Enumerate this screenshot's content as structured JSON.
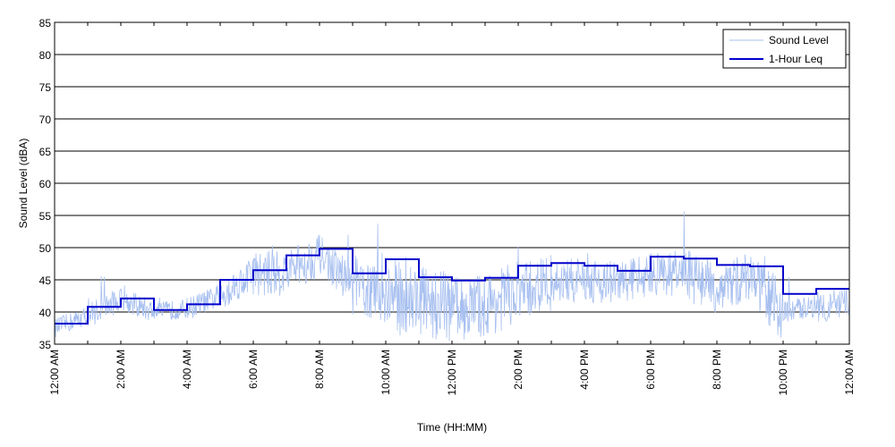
{
  "chart_data": {
    "type": "line",
    "title": "",
    "xlabel": "Time (HH:MM)",
    "ylabel": "Sound Level (dBA)",
    "ylim": [
      35,
      85
    ],
    "yticks": [
      35,
      40,
      45,
      50,
      55,
      60,
      65,
      70,
      75,
      80,
      85
    ],
    "xlim_hours": [
      0,
      24
    ],
    "xtick_hours": [
      0,
      2,
      4,
      6,
      8,
      10,
      12,
      14,
      16,
      18,
      20,
      22,
      24
    ],
    "xtick_labels": [
      "12:00 AM",
      "2:00 AM",
      "4:00 AM",
      "6:00 AM",
      "8:00 AM",
      "10:00 AM",
      "12:00 PM",
      "2:00 PM",
      "4:00 PM",
      "6:00 PM",
      "8:00 PM",
      "10:00 PM",
      "12:00 AM"
    ],
    "grid": "horizontal",
    "legend_position": "top-right",
    "series": [
      {
        "name": "Sound Level",
        "color": "#a8c0f0",
        "style": "thin-noisy",
        "hourly_mean": [
          37.5,
          39.5,
          42.0,
          40.0,
          40.5,
          42.5,
          46.0,
          46.0,
          49.0,
          44.0,
          42.5,
          42.0,
          40.5,
          41.0,
          43.0,
          44.5,
          45.0,
          44.5,
          46.0,
          46.0,
          43.5,
          45.5,
          40.0,
          41.0
        ],
        "hourly_spread": [
          1.5,
          2.0,
          1.8,
          1.5,
          1.8,
          2.5,
          3.5,
          3.5,
          3.0,
          4.5,
          6.0,
          5.5,
          5.0,
          5.0,
          4.5,
          3.5,
          3.5,
          3.5,
          3.5,
          4.0,
          4.0,
          4.5,
          1.8,
          2.5
        ]
      },
      {
        "name": "1-Hour Leq",
        "color": "#0000cc",
        "style": "step",
        "values": [
          38.2,
          40.8,
          42.1,
          40.3,
          41.2,
          45.0,
          46.5,
          48.8,
          49.8,
          46.0,
          48.2,
          45.4,
          44.9,
          45.3,
          47.2,
          47.6,
          47.2,
          46.4,
          48.6,
          48.3,
          47.3,
          47.1,
          42.8,
          43.6
        ]
      }
    ]
  }
}
